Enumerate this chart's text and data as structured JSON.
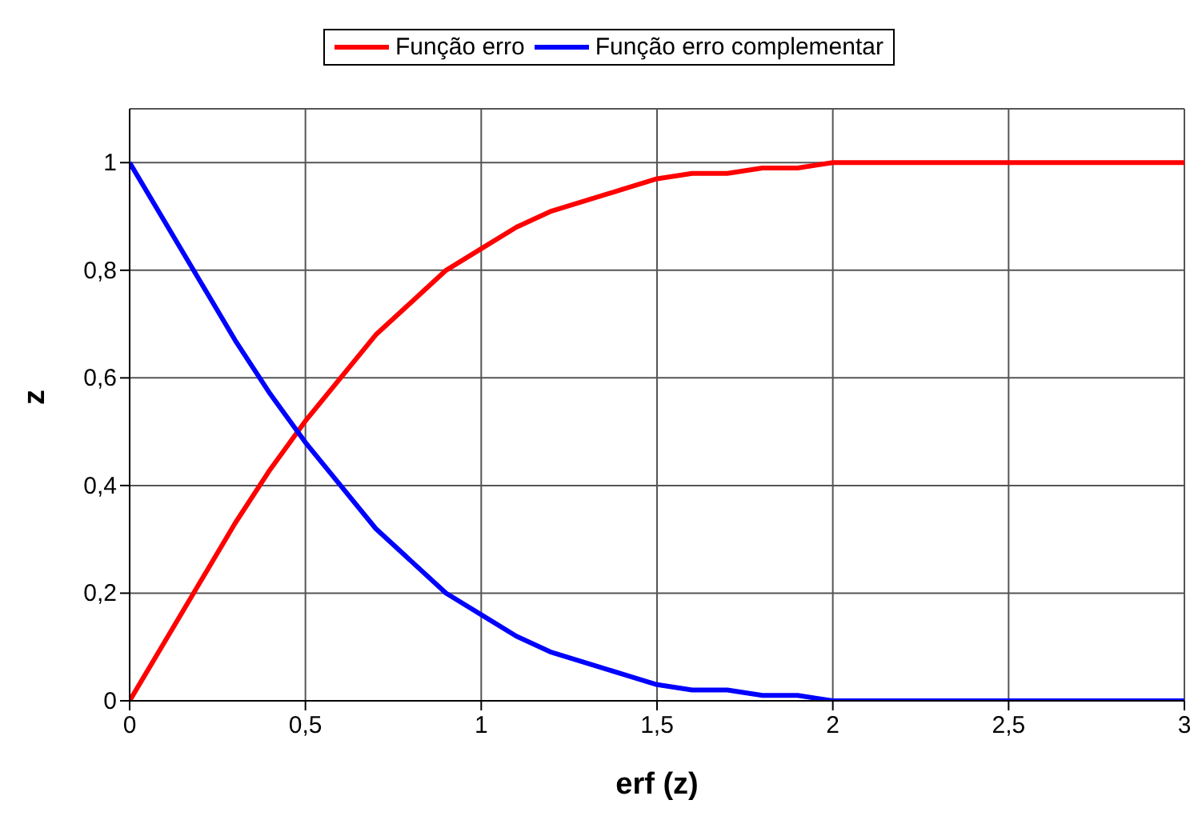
{
  "chart_data": {
    "type": "line",
    "xlabel": "erf (z)",
    "ylabel": "z",
    "x": [
      0,
      0.1,
      0.2,
      0.3,
      0.4,
      0.5,
      0.6,
      0.7,
      0.8,
      0.9,
      1,
      1.1,
      1.2,
      1.3,
      1.4,
      1.5,
      1.6,
      1.7,
      1.8,
      1.9,
      2,
      2.5,
      3
    ],
    "series": [
      {
        "name": "Função erro",
        "color": "#ff0000",
        "values": [
          0,
          0.11,
          0.22,
          0.33,
          0.43,
          0.52,
          0.6,
          0.68,
          0.74,
          0.8,
          0.84,
          0.88,
          0.91,
          0.93,
          0.95,
          0.97,
          0.98,
          0.98,
          0.99,
          0.99,
          1,
          1,
          1
        ]
      },
      {
        "name": "Função erro complementar",
        "color": "#0000ff",
        "values": [
          1,
          0.89,
          0.78,
          0.67,
          0.57,
          0.48,
          0.4,
          0.32,
          0.26,
          0.2,
          0.16,
          0.12,
          0.09,
          0.07,
          0.05,
          0.03,
          0.02,
          0.02,
          0.01,
          0.01,
          0,
          0,
          0
        ]
      }
    ],
    "xlim": [
      0,
      3
    ],
    "xticks": [
      0,
      {
        "value": 0.5,
        "label": "0,5"
      },
      1,
      {
        "value": 1.5,
        "label": "1,5"
      },
      2,
      {
        "value": 2.5,
        "label": "2,5"
      },
      3
    ],
    "ylim": [
      0,
      1.1
    ],
    "yticks": [
      0,
      {
        "value": 0.2,
        "label": "0,2"
      },
      {
        "value": 0.4,
        "label": "0,4"
      },
      {
        "value": 0.6,
        "label": "0,6"
      },
      {
        "value": 0.8,
        "label": "0,8"
      },
      1
    ],
    "grid": true,
    "legend": "top",
    "marker": "none",
    "line_style": "solid"
  }
}
